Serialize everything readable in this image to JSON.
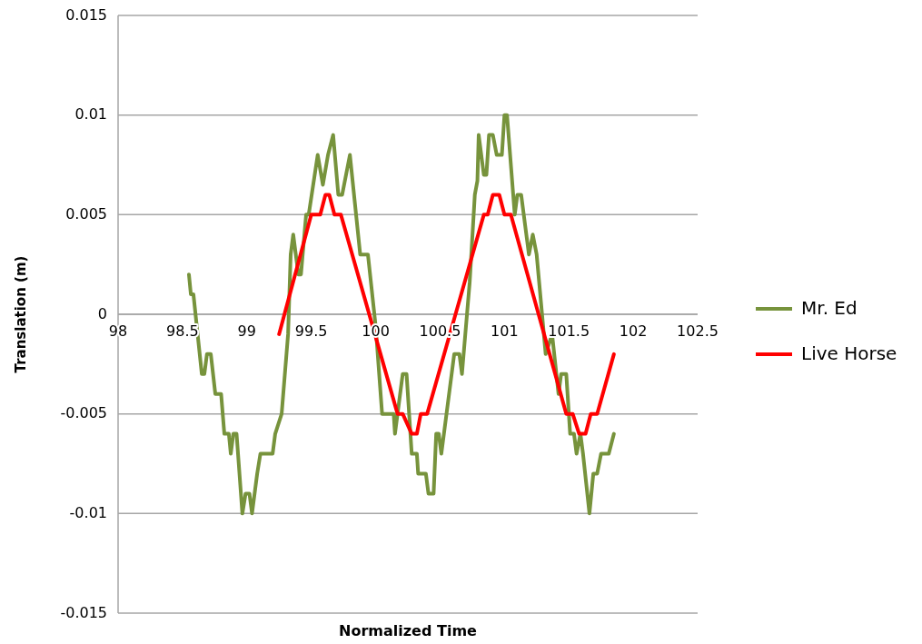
{
  "chart_data": {
    "type": "line",
    "xlabel": "Normalized Time",
    "ylabel": "Translation (m)",
    "xlim": [
      98,
      102.5
    ],
    "xticks": [
      98,
      98.5,
      99,
      99.5,
      100,
      100.5,
      101,
      101.5,
      102,
      102.5
    ],
    "ylim": [
      -0.015,
      0.015
    ],
    "yticks": [
      -0.015,
      -0.01,
      -0.005,
      0,
      0.005,
      0.01,
      0.015
    ],
    "grid": "y",
    "legend": "right",
    "marker": "none",
    "line_style": "solid",
    "series": [
      {
        "name": "Mr. Ed",
        "color": "#77933c",
        "x": [
          98.55,
          98.565,
          98.585,
          98.65,
          98.67,
          98.69,
          98.72,
          98.755,
          98.8,
          98.825,
          98.86,
          98.875,
          98.895,
          98.92,
          98.965,
          98.99,
          99.02,
          99.04,
          99.08,
          99.105,
          99.2,
          99.22,
          99.27,
          99.32,
          99.34,
          99.36,
          99.4,
          99.42,
          99.46,
          99.48,
          99.55,
          99.59,
          99.63,
          99.67,
          99.71,
          99.74,
          99.8,
          99.88,
          99.94,
          100,
          100.05,
          100.14,
          100.15,
          100.21,
          100.24,
          100.28,
          100.32,
          100.33,
          100.39,
          100.41,
          100.45,
          100.47,
          100.49,
          100.51,
          100.55,
          100.61,
          100.65,
          100.67,
          100.73,
          100.77,
          100.79,
          100.8,
          100.84,
          100.86,
          100.88,
          100.91,
          100.94,
          100.98,
          101,
          101.02,
          101.08,
          101.1,
          101.13,
          101.19,
          101.22,
          101.25,
          101.32,
          101.37,
          101.42,
          101.44,
          101.48,
          101.51,
          101.54,
          101.56,
          101.59,
          101.61,
          101.66,
          101.69,
          101.72,
          101.75,
          101.81,
          101.85
        ],
        "values": [
          0.002,
          0.001,
          0.001,
          -0.003,
          -0.003,
          -0.002,
          -0.002,
          -0.004,
          -0.004,
          -0.006,
          -0.006,
          -0.007,
          -0.006,
          -0.006,
          -0.01,
          -0.009,
          -0.009,
          -0.01,
          -0.008,
          -0.007,
          -0.007,
          -0.006,
          -0.005,
          -0.001,
          0.003,
          0.004,
          0.002,
          0.002,
          0.005,
          0.005,
          0.008,
          0.0065,
          0.008,
          0.009,
          0.006,
          0.006,
          0.008,
          0.003,
          0.003,
          -0.0006,
          -0.005,
          -0.005,
          -0.006,
          -0.003,
          -0.003,
          -0.007,
          -0.007,
          -0.008,
          -0.008,
          -0.009,
          -0.009,
          -0.006,
          -0.006,
          -0.007,
          -0.005,
          -0.002,
          -0.002,
          -0.003,
          0.0016,
          0.006,
          0.0067,
          0.009,
          0.007,
          0.007,
          0.009,
          0.009,
          0.008,
          0.008,
          0.01,
          0.01,
          0.005,
          0.006,
          0.006,
          0.003,
          0.004,
          0.003,
          -0.002,
          -0.001,
          -0.004,
          -0.003,
          -0.003,
          -0.006,
          -0.006,
          -0.007,
          -0.006,
          -0.007,
          -0.01,
          -0.008,
          -0.008,
          -0.007,
          -0.007,
          -0.006
        ]
      },
      {
        "name": "Live Horse",
        "color": "#ff0000",
        "x": [
          99.25,
          99.5,
          99.57,
          99.61,
          99.64,
          99.68,
          99.73,
          100.17,
          100.21,
          100.28,
          100.32,
          100.35,
          100.4,
          100.84,
          100.87,
          100.91,
          100.96,
          101,
          101.05,
          101.48,
          101.53,
          101.58,
          101.63,
          101.67,
          101.72,
          101.85
        ],
        "values": [
          -0.001,
          0.005,
          0.005,
          0.006,
          0.006,
          0.005,
          0.005,
          -0.005,
          -0.005,
          -0.006,
          -0.006,
          -0.005,
          -0.005,
          0.005,
          0.005,
          0.006,
          0.006,
          0.005,
          0.005,
          -0.005,
          -0.005,
          -0.006,
          -0.006,
          -0.005,
          -0.005,
          -0.002
        ]
      }
    ]
  }
}
